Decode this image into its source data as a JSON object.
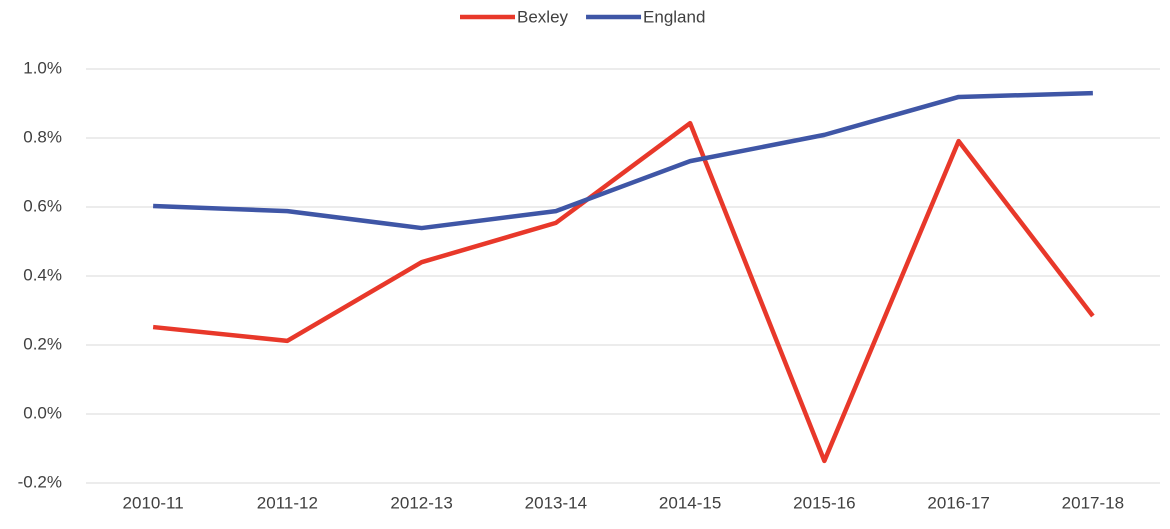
{
  "chart_data": {
    "type": "line",
    "categories": [
      "2010-11",
      "2011-12",
      "2012-13",
      "2013-14",
      "2014-15",
      "2015-16",
      "2016-17",
      "2017-18"
    ],
    "series": [
      {
        "name": "Bexley",
        "color": "#e8382a",
        "values": [
          0.252,
          0.212,
          0.44,
          0.554,
          0.843,
          -0.136,
          0.791,
          0.284
        ]
      },
      {
        "name": "England",
        "color": "#3f56a6",
        "values": [
          0.603,
          0.588,
          0.539,
          0.588,
          0.733,
          0.809,
          0.919,
          0.93
        ]
      }
    ],
    "ylim": [
      -0.2,
      1.0
    ],
    "yticks": [
      {
        "value": -0.2,
        "label": "-0.2%"
      },
      {
        "value": 0.0,
        "label": "0.0%"
      },
      {
        "value": 0.2,
        "label": "0.2%"
      },
      {
        "value": 0.4,
        "label": "0.4%"
      },
      {
        "value": 0.6,
        "label": "0.6%"
      },
      {
        "value": 0.8,
        "label": "0.8%"
      },
      {
        "value": 1.0,
        "label": "1.0%"
      }
    ],
    "grid": true,
    "legend": "top"
  }
}
